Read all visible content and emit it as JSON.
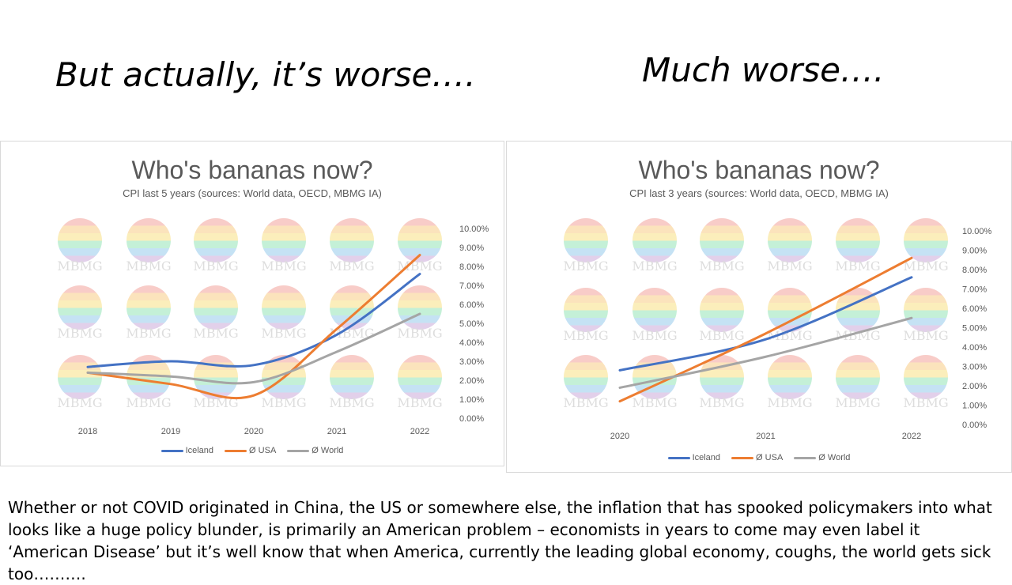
{
  "slide": {
    "title_left": "But actually, it’s worse….",
    "title_right": "Much worse….",
    "body_text": "Whether or not COVID originated in China, the US or somewhere else, the inflation that has spooked policymakers into what looks like a huge policy blunder, is primarily an American problem – economists in years to come may even label it ‘American Disease’ but it’s well know that when America, currently the leading global economy, coughs, the world gets sick too………."
  },
  "watermark": {
    "text": "MBMG",
    "kind": "logo"
  },
  "colors": {
    "Iceland": "#4472C4",
    "Ø USA": "#ED7D31",
    "Ø World": "#A5A5A5"
  },
  "chart_data": [
    {
      "type": "line",
      "title": "Who's bananas now?",
      "subtitle": "CPI last 5 years (sources: World data, OECD, MBMG IA)",
      "x": [
        "2018",
        "2019",
        "2020",
        "2021",
        "2022"
      ],
      "ylim": [
        0,
        10
      ],
      "y_ticks": [
        "0.00%",
        "1.00%",
        "2.00%",
        "3.00%",
        "4.00%",
        "5.00%",
        "6.00%",
        "7.00%",
        "8.00%",
        "9.00%",
        "10.00%"
      ],
      "y_axis_side": "right",
      "legend_position": "bottom",
      "grid": false,
      "smooth": true,
      "series": [
        {
          "name": "Iceland",
          "values": [
            2.7,
            3.0,
            2.8,
            4.4,
            7.6
          ]
        },
        {
          "name": "Ø USA",
          "values": [
            2.4,
            1.8,
            1.2,
            4.7,
            8.6
          ]
        },
        {
          "name": "Ø World",
          "values": [
            2.4,
            2.2,
            1.9,
            3.5,
            5.5
          ]
        }
      ]
    },
    {
      "type": "line",
      "title": "Who's bananas now?",
      "subtitle": "CPI last 3 years (sources: World data, OECD, MBMG IA)",
      "x": [
        "2020",
        "2021",
        "2022"
      ],
      "ylim": [
        0,
        10
      ],
      "y_ticks": [
        "0.00%",
        "1.00%",
        "2.00%",
        "3.00%",
        "4.00%",
        "5.00%",
        "6.00%",
        "7.00%",
        "8.00%",
        "9.00%",
        "10.00%"
      ],
      "y_axis_side": "right",
      "legend_position": "bottom",
      "grid": false,
      "smooth": true,
      "series": [
        {
          "name": "Iceland",
          "values": [
            2.8,
            4.4,
            7.6
          ]
        },
        {
          "name": "Ø USA",
          "values": [
            1.2,
            4.7,
            8.6
          ]
        },
        {
          "name": "Ø World",
          "values": [
            1.9,
            3.5,
            5.5
          ]
        }
      ]
    }
  ]
}
